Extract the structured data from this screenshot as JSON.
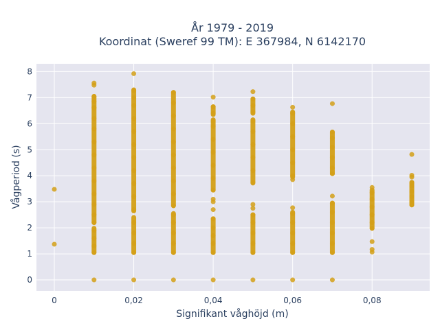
{
  "chart_data": {
    "type": "scatter",
    "title_line1": "År 1979 - 2019",
    "title_line2": "Koordinat (Sweref 99 TM): E 367984, N 6142170",
    "xlabel": "Signifikant våghöjd (m)",
    "ylabel": "Vågperiod (s)",
    "xlim": [
      -0.0045,
      0.0945
    ],
    "ylim": [
      -0.42,
      8.3
    ],
    "x_ticks": [
      0,
      0.02,
      0.04,
      0.06,
      0.08
    ],
    "x_tick_labels": [
      "0",
      "0,02",
      "0,04",
      "0,06",
      "0,08"
    ],
    "y_ticks": [
      0,
      1,
      2,
      3,
      4,
      5,
      6,
      7,
      8
    ],
    "y_tick_labels": [
      "0",
      "1",
      "2",
      "3",
      "4",
      "5",
      "6",
      "7",
      "8"
    ],
    "grid": true,
    "colors": {
      "marker": "#d4a017",
      "plot_bg": "#e5e5ef",
      "grid": "#ffffff",
      "text": "#2a3f5f"
    },
    "series": [
      {
        "points": [
          {
            "x": 0.0,
            "y": 3.48
          },
          {
            "x": 0.0,
            "y": 1.37
          },
          {
            "x": 0.01,
            "y": 0.0
          },
          {
            "x": 0.01,
            "y": 1.05
          },
          {
            "x": 0.01,
            "y": 1.3
          },
          {
            "x": 0.01,
            "y": 1.6
          },
          {
            "x": 0.01,
            "y": 1.9
          },
          {
            "x": 0.01,
            "y": 2.2
          },
          {
            "x": 0.01,
            "y": 2.5
          },
          {
            "x": 0.01,
            "y": 2.9
          },
          {
            "x": 0.01,
            "y": 3.3
          },
          {
            "x": 0.01,
            "y": 3.8
          },
          {
            "x": 0.01,
            "y": 4.3
          },
          {
            "x": 0.01,
            "y": 4.8
          },
          {
            "x": 0.01,
            "y": 5.3
          },
          {
            "x": 0.01,
            "y": 5.8
          },
          {
            "x": 0.01,
            "y": 6.2
          },
          {
            "x": 0.01,
            "y": 6.6
          },
          {
            "x": 0.01,
            "y": 6.85
          },
          {
            "x": 0.01,
            "y": 7.05
          },
          {
            "x": 0.01,
            "y": 7.48
          },
          {
            "x": 0.01,
            "y": 7.56
          },
          {
            "x": 0.02,
            "y": 0.0
          },
          {
            "x": 0.02,
            "y": 1.05
          },
          {
            "x": 0.02,
            "y": 1.4
          },
          {
            "x": 0.02,
            "y": 1.8
          },
          {
            "x": 0.02,
            "y": 2.2
          },
          {
            "x": 0.02,
            "y": 2.7
          },
          {
            "x": 0.02,
            "y": 3.2
          },
          {
            "x": 0.02,
            "y": 3.7
          },
          {
            "x": 0.02,
            "y": 4.2
          },
          {
            "x": 0.02,
            "y": 4.7
          },
          {
            "x": 0.02,
            "y": 5.2
          },
          {
            "x": 0.02,
            "y": 5.7
          },
          {
            "x": 0.02,
            "y": 6.2
          },
          {
            "x": 0.02,
            "y": 6.7
          },
          {
            "x": 0.02,
            "y": 7.0
          },
          {
            "x": 0.02,
            "y": 7.27
          },
          {
            "x": 0.02,
            "y": 7.92
          },
          {
            "x": 0.03,
            "y": 0.0
          },
          {
            "x": 0.03,
            "y": 1.05
          },
          {
            "x": 0.03,
            "y": 1.4
          },
          {
            "x": 0.03,
            "y": 1.8
          },
          {
            "x": 0.03,
            "y": 2.2
          },
          {
            "x": 0.03,
            "y": 2.5
          },
          {
            "x": 0.03,
            "y": 2.85
          },
          {
            "x": 0.03,
            "y": 3.3
          },
          {
            "x": 0.03,
            "y": 3.8
          },
          {
            "x": 0.03,
            "y": 4.3
          },
          {
            "x": 0.03,
            "y": 4.8
          },
          {
            "x": 0.03,
            "y": 5.3
          },
          {
            "x": 0.03,
            "y": 5.8
          },
          {
            "x": 0.03,
            "y": 6.3
          },
          {
            "x": 0.03,
            "y": 6.8
          },
          {
            "x": 0.03,
            "y": 7.2
          },
          {
            "x": 0.04,
            "y": 0.0
          },
          {
            "x": 0.04,
            "y": 1.05
          },
          {
            "x": 0.04,
            "y": 1.4
          },
          {
            "x": 0.04,
            "y": 1.7
          },
          {
            "x": 0.04,
            "y": 2.0
          },
          {
            "x": 0.04,
            "y": 2.35
          },
          {
            "x": 0.04,
            "y": 2.7
          },
          {
            "x": 0.04,
            "y": 3.0
          },
          {
            "x": 0.04,
            "y": 3.1
          },
          {
            "x": 0.04,
            "y": 3.45
          },
          {
            "x": 0.04,
            "y": 3.9
          },
          {
            "x": 0.04,
            "y": 4.4
          },
          {
            "x": 0.04,
            "y": 4.9
          },
          {
            "x": 0.04,
            "y": 5.4
          },
          {
            "x": 0.04,
            "y": 5.9
          },
          {
            "x": 0.04,
            "y": 6.1
          },
          {
            "x": 0.04,
            "y": 6.4
          },
          {
            "x": 0.04,
            "y": 6.65
          },
          {
            "x": 0.04,
            "y": 7.02
          },
          {
            "x": 0.05,
            "y": 0.0
          },
          {
            "x": 0.05,
            "y": 1.05
          },
          {
            "x": 0.05,
            "y": 1.4
          },
          {
            "x": 0.05,
            "y": 1.8
          },
          {
            "x": 0.05,
            "y": 2.2
          },
          {
            "x": 0.05,
            "y": 2.5
          },
          {
            "x": 0.05,
            "y": 2.75
          },
          {
            "x": 0.05,
            "y": 2.9
          },
          {
            "x": 0.05,
            "y": 3.75
          },
          {
            "x": 0.05,
            "y": 4.2
          },
          {
            "x": 0.05,
            "y": 4.7
          },
          {
            "x": 0.05,
            "y": 5.2
          },
          {
            "x": 0.05,
            "y": 5.7
          },
          {
            "x": 0.05,
            "y": 6.1
          },
          {
            "x": 0.05,
            "y": 6.45
          },
          {
            "x": 0.05,
            "y": 6.7
          },
          {
            "x": 0.05,
            "y": 6.95
          },
          {
            "x": 0.05,
            "y": 7.23
          },
          {
            "x": 0.06,
            "y": 0.0
          },
          {
            "x": 0.06,
            "y": 1.05
          },
          {
            "x": 0.06,
            "y": 1.4
          },
          {
            "x": 0.06,
            "y": 1.8
          },
          {
            "x": 0.06,
            "y": 2.2
          },
          {
            "x": 0.06,
            "y": 2.55
          },
          {
            "x": 0.06,
            "y": 2.77
          },
          {
            "x": 0.06,
            "y": 3.85
          },
          {
            "x": 0.06,
            "y": 4.0
          },
          {
            "x": 0.06,
            "y": 4.5
          },
          {
            "x": 0.06,
            "y": 5.0
          },
          {
            "x": 0.06,
            "y": 5.5
          },
          {
            "x": 0.06,
            "y": 6.0
          },
          {
            "x": 0.06,
            "y": 6.4
          },
          {
            "x": 0.06,
            "y": 6.63
          },
          {
            "x": 0.07,
            "y": 0.0
          },
          {
            "x": 0.07,
            "y": 1.05
          },
          {
            "x": 0.07,
            "y": 1.4
          },
          {
            "x": 0.07,
            "y": 1.8
          },
          {
            "x": 0.07,
            "y": 2.2
          },
          {
            "x": 0.07,
            "y": 2.6
          },
          {
            "x": 0.07,
            "y": 2.95
          },
          {
            "x": 0.07,
            "y": 3.22
          },
          {
            "x": 0.07,
            "y": 4.08
          },
          {
            "x": 0.07,
            "y": 4.3
          },
          {
            "x": 0.07,
            "y": 4.7
          },
          {
            "x": 0.07,
            "y": 5.1
          },
          {
            "x": 0.07,
            "y": 5.45
          },
          {
            "x": 0.07,
            "y": 5.68
          },
          {
            "x": 0.07,
            "y": 6.77
          },
          {
            "x": 0.08,
            "y": 1.07
          },
          {
            "x": 0.08,
            "y": 1.17
          },
          {
            "x": 0.08,
            "y": 1.47
          },
          {
            "x": 0.08,
            "y": 1.98
          },
          {
            "x": 0.08,
            "y": 2.2
          },
          {
            "x": 0.08,
            "y": 2.5
          },
          {
            "x": 0.08,
            "y": 2.8
          },
          {
            "x": 0.08,
            "y": 3.1
          },
          {
            "x": 0.08,
            "y": 3.35
          },
          {
            "x": 0.08,
            "y": 3.55
          },
          {
            "x": 0.09,
            "y": 2.88
          },
          {
            "x": 0.09,
            "y": 3.0
          },
          {
            "x": 0.09,
            "y": 3.2
          },
          {
            "x": 0.09,
            "y": 3.4
          },
          {
            "x": 0.09,
            "y": 3.6
          },
          {
            "x": 0.09,
            "y": 3.72
          },
          {
            "x": 0.09,
            "y": 3.95
          },
          {
            "x": 0.09,
            "y": 4.02
          },
          {
            "x": 0.09,
            "y": 4.82
          }
        ],
        "segments": [
          {
            "x": 0.01,
            "y_from": 1.05,
            "y_to": 1.98
          },
          {
            "x": 0.01,
            "y_from": 2.2,
            "y_to": 6.62
          },
          {
            "x": 0.01,
            "y_from": 6.62,
            "y_to": 7.05
          },
          {
            "x": 0.02,
            "y_from": 1.05,
            "y_to": 2.4
          },
          {
            "x": 0.02,
            "y_from": 2.65,
            "y_to": 7.3
          },
          {
            "x": 0.03,
            "y_from": 1.05,
            "y_to": 2.55
          },
          {
            "x": 0.03,
            "y_from": 2.85,
            "y_to": 7.2
          },
          {
            "x": 0.04,
            "y_from": 1.05,
            "y_to": 2.35
          },
          {
            "x": 0.04,
            "y_from": 3.45,
            "y_to": 6.15
          },
          {
            "x": 0.04,
            "y_from": 6.35,
            "y_to": 6.65
          },
          {
            "x": 0.05,
            "y_from": 1.05,
            "y_to": 2.5
          },
          {
            "x": 0.05,
            "y_from": 3.72,
            "y_to": 6.15
          },
          {
            "x": 0.05,
            "y_from": 6.4,
            "y_to": 6.95
          },
          {
            "x": 0.06,
            "y_from": 1.05,
            "y_to": 2.6
          },
          {
            "x": 0.06,
            "y_from": 3.95,
            "y_to": 6.45
          },
          {
            "x": 0.07,
            "y_from": 1.05,
            "y_to": 2.95
          },
          {
            "x": 0.07,
            "y_from": 4.08,
            "y_to": 5.68
          },
          {
            "x": 0.08,
            "y_from": 1.98,
            "y_to": 3.45
          },
          {
            "x": 0.09,
            "y_from": 2.88,
            "y_to": 3.75
          }
        ]
      }
    ]
  }
}
